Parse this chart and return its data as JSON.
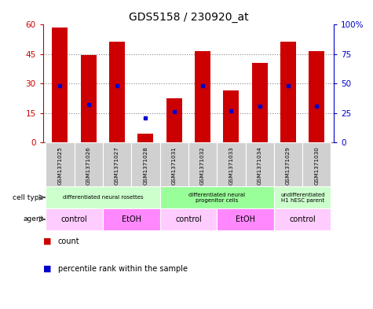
{
  "title": "GDS5158 / 230920_at",
  "samples": [
    "GSM1371025",
    "GSM1371026",
    "GSM1371027",
    "GSM1371028",
    "GSM1371031",
    "GSM1371032",
    "GSM1371033",
    "GSM1371034",
    "GSM1371029",
    "GSM1371030"
  ],
  "counts": [
    58.5,
    44.5,
    51.5,
    4.5,
    22.5,
    46.5,
    26.5,
    40.5,
    51.5,
    46.5
  ],
  "percentile_ranks": [
    48,
    32,
    48,
    21,
    26,
    48,
    27,
    31,
    48,
    31
  ],
  "ylim_left": [
    0,
    60
  ],
  "ylim_right": [
    0,
    100
  ],
  "yticks_left": [
    0,
    15,
    30,
    45,
    60
  ],
  "ytick_labels_left": [
    "0",
    "15",
    "30",
    "45",
    "60"
  ],
  "yticks_right": [
    0,
    25,
    50,
    75,
    100
  ],
  "ytick_labels_right": [
    "0",
    "25",
    "50",
    "75",
    "100%"
  ],
  "bar_color": "#cc0000",
  "percentile_color": "#0000cc",
  "bar_width": 0.55,
  "cell_type_groups": [
    {
      "label": "differentiated neural rosettes",
      "start": 0,
      "end": 3,
      "color": "#ccffcc"
    },
    {
      "label": "differentiated neural\nprogenitor cells",
      "start": 4,
      "end": 7,
      "color": "#99ff99"
    },
    {
      "label": "undifferentiated\nH1 hESC parent",
      "start": 8,
      "end": 9,
      "color": "#ccffcc"
    }
  ],
  "agent_groups": [
    {
      "label": "control",
      "start": 0,
      "end": 1,
      "color": "#ffccff"
    },
    {
      "label": "EtOH",
      "start": 2,
      "end": 3,
      "color": "#ff88ff"
    },
    {
      "label": "control",
      "start": 4,
      "end": 5,
      "color": "#ffccff"
    },
    {
      "label": "EtOH",
      "start": 6,
      "end": 7,
      "color": "#ff88ff"
    },
    {
      "label": "control",
      "start": 8,
      "end": 9,
      "color": "#ffccff"
    }
  ],
  "legend_count_color": "#cc0000",
  "legend_percentile_color": "#0000cc",
  "bg_color": "#ffffff",
  "grid_color": "#888888",
  "axis_left_color": "#cc0000",
  "axis_right_color": "#0000cc",
  "sample_bg_color": "#d0d0d0"
}
